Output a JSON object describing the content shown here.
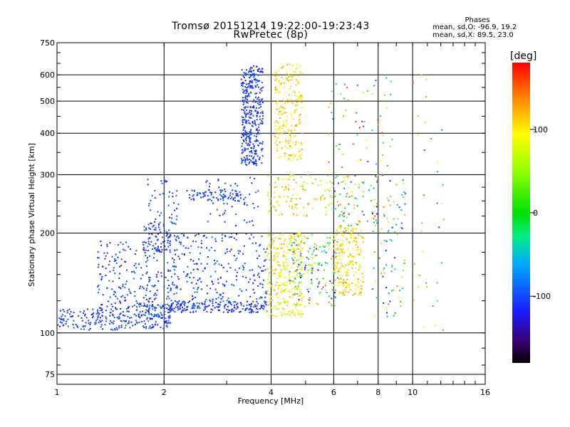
{
  "title": {
    "line1": "Tromsø 20151214 19:22:00-19:23:43",
    "line2": "RwPretec (8p)"
  },
  "stats": {
    "heading": "Phases",
    "o_line": "mean, sd,O: -96.9, 19.2",
    "x_line": "mean, sd,X:  89.5, 23.0"
  },
  "colorbar": {
    "label": "[deg]",
    "ticks": [
      {
        "v": 100,
        "t": "100"
      },
      {
        "v": 0,
        "t": "0"
      },
      {
        "v": -100,
        "t": "-100"
      }
    ],
    "range": [
      -180,
      180
    ]
  },
  "chart_data": {
    "type": "scatter",
    "xlabel": "Frequency [MHz]",
    "ylabel": "Stationary phase Virtual Height [km]",
    "x_scale": "log",
    "y_scale": "log",
    "xlim": [
      1,
      16
    ],
    "ylim": [
      70,
      750
    ],
    "grid": true,
    "x_ticks": [
      {
        "v": 1,
        "t": "1"
      },
      {
        "v": 2,
        "t": "2"
      },
      {
        "v": 4,
        "t": "4"
      },
      {
        "v": 6,
        "t": "6"
      },
      {
        "v": 8,
        "t": "8"
      },
      {
        "v": 10,
        "t": "10"
      },
      {
        "v": 16,
        "t": "16"
      }
    ],
    "y_ticks": [
      {
        "v": 75,
        "t": "75"
      },
      {
        "v": 100,
        "t": "100"
      },
      {
        "v": 200,
        "t": "200"
      },
      {
        "v": 300,
        "t": "300"
      },
      {
        "v": 400,
        "t": "400"
      },
      {
        "v": 500,
        "t": "500"
      },
      {
        "v": 600,
        "t": "600"
      },
      {
        "v": 750,
        "t": "750"
      }
    ],
    "color_variable": "phase [deg]",
    "clusters": [
      {
        "f": [
          1.0,
          1.55
        ],
        "h": [
          102,
          118
        ],
        "phase": [
          -120,
          -90
        ],
        "n": 140
      },
      {
        "f": [
          1.55,
          2.1
        ],
        "h": [
          103,
          122
        ],
        "phase": [
          -120,
          -80
        ],
        "n": 150
      },
      {
        "f": [
          1.3,
          2.1
        ],
        "h": [
          118,
          150
        ],
        "phase": [
          -125,
          -85
        ],
        "n": 120
      },
      {
        "f": [
          1.3,
          2.05
        ],
        "h": [
          150,
          190
        ],
        "phase": [
          -120,
          -90
        ],
        "n": 90
      },
      {
        "f": [
          1.75,
          2.1
        ],
        "h": [
          175,
          215
        ],
        "phase": [
          -125,
          -90
        ],
        "n": 70
      },
      {
        "f": [
          1.8,
          2.2
        ],
        "h": [
          210,
          295
        ],
        "phase": [
          -120,
          -80
        ],
        "n": 45
      },
      {
        "f": [
          2.05,
          3.9
        ],
        "h": [
          115,
          125
        ],
        "phase": [
          -130,
          -90
        ],
        "n": 200
      },
      {
        "f": [
          2.05,
          3.9
        ],
        "h": [
          125,
          200
        ],
        "phase": [
          -125,
          -80
        ],
        "n": 260
      },
      {
        "f": [
          2.3,
          3.3
        ],
        "h": [
          250,
          270
        ],
        "phase": [
          -115,
          -90
        ],
        "n": 70
      },
      {
        "f": [
          2.6,
          3.7
        ],
        "h": [
          210,
          295
        ],
        "phase": [
          -120,
          -90
        ],
        "n": 60
      },
      {
        "f": [
          3.3,
          3.8
        ],
        "h": [
          320,
          640
        ],
        "phase": [
          -125,
          -90
        ],
        "n": 360
      },
      {
        "f": [
          3.9,
          4.9
        ],
        "h": [
          112,
          200
        ],
        "phase": [
          60,
          130
        ],
        "n": 280
      },
      {
        "f": [
          3.9,
          6.0
        ],
        "h": [
          225,
          300
        ],
        "phase": [
          40,
          140
        ],
        "n": 120
      },
      {
        "f": [
          4.1,
          4.9
        ],
        "h": [
          330,
          650
        ],
        "phase": [
          75,
          130
        ],
        "n": 220
      },
      {
        "f": [
          4.5,
          6.2
        ],
        "h": [
          120,
          200
        ],
        "phase": [
          -130,
          150
        ],
        "n": 180
      },
      {
        "f": [
          6.0,
          7.3
        ],
        "h": [
          130,
          210
        ],
        "phase": [
          70,
          135
        ],
        "n": 220
      },
      {
        "f": [
          6.0,
          8.0
        ],
        "h": [
          210,
          300
        ],
        "phase": [
          -110,
          160
        ],
        "n": 90
      },
      {
        "f": [
          5.8,
          8.8
        ],
        "h": [
          300,
          600
        ],
        "phase": [
          -120,
          180
        ],
        "n": 60
      },
      {
        "f": [
          7.7,
          9.6
        ],
        "h": [
          110,
          300
        ],
        "phase": [
          -120,
          150
        ],
        "n": 90
      },
      {
        "f": [
          10.0,
          12.5
        ],
        "h": [
          100,
          650
        ],
        "phase": [
          -120,
          180
        ],
        "n": 35
      }
    ]
  }
}
